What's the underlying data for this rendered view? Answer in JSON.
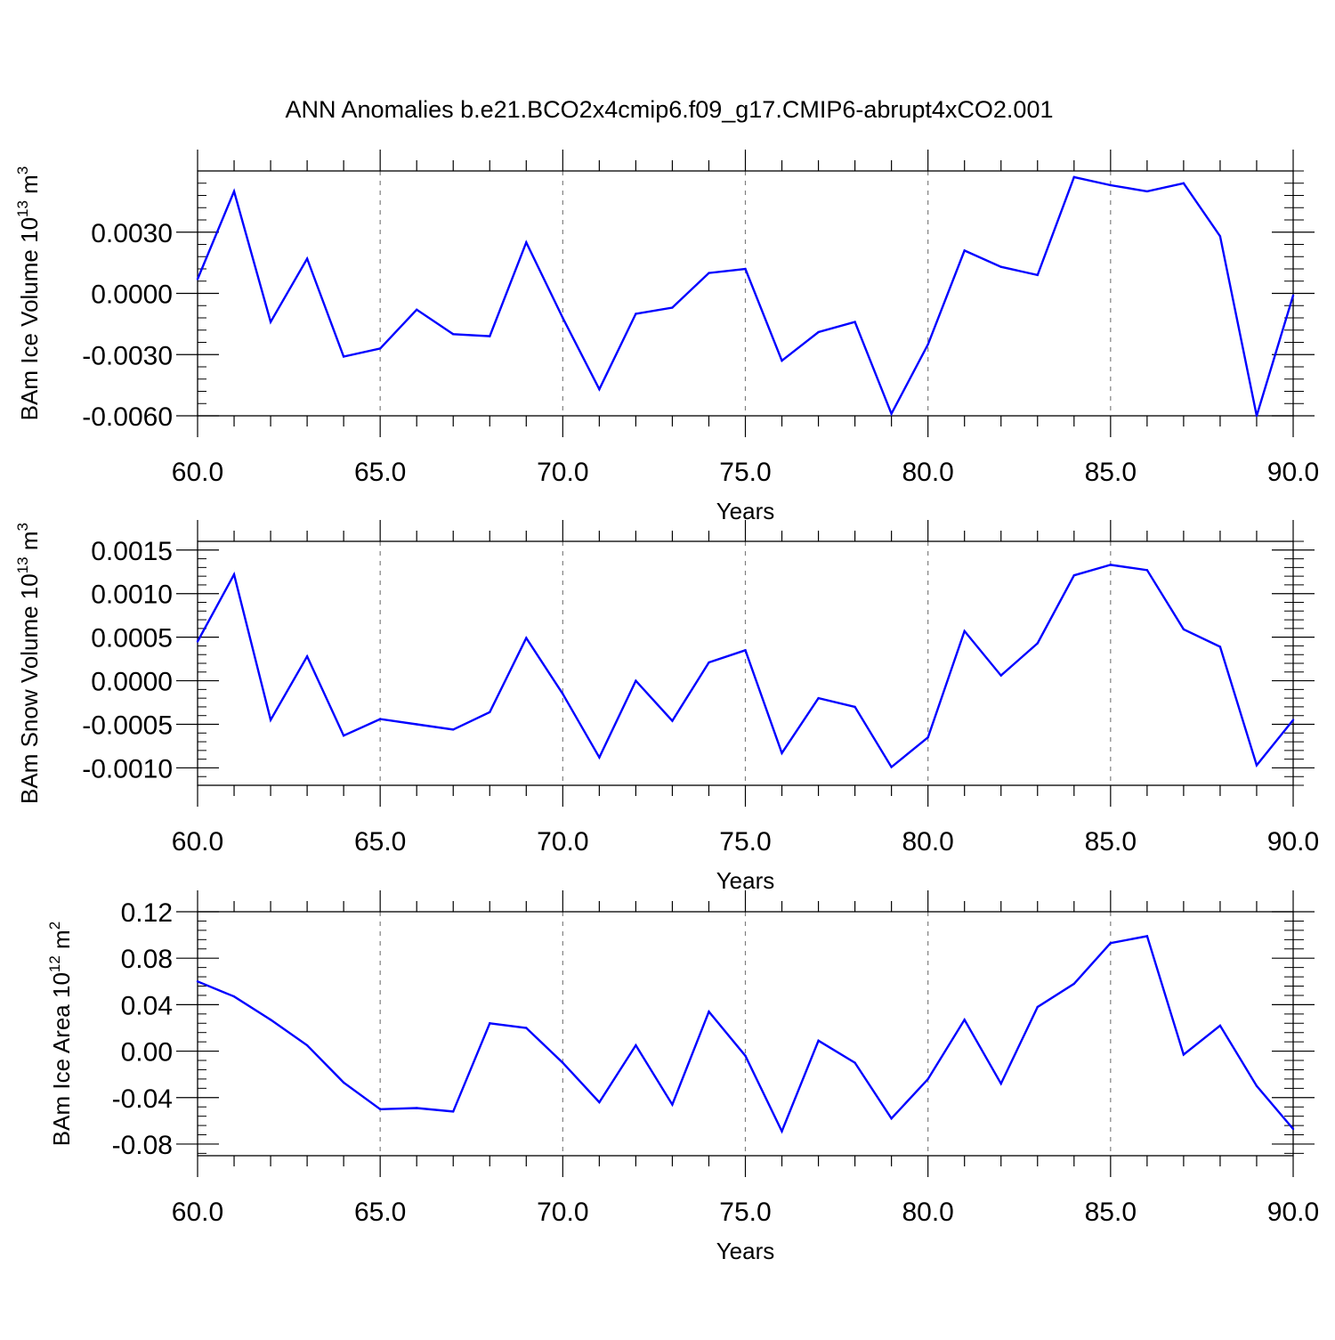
{
  "title": "ANN Anomalies b.e21.BCO2x4cmip6.f09_g17.CMIP6-abrupt4xCO2.001",
  "colors": {
    "series": "#0000ff",
    "axis": "#000000",
    "grid": "#7f7f7f"
  },
  "chart_data": [
    {
      "type": "line",
      "ylabel": {
        "base": "BAm Ice Volume 10",
        "exp": "13",
        "unit": " m",
        "unit_exp": "3"
      },
      "xlabel": "Years",
      "xlim": [
        60,
        90
      ],
      "ylim": [
        -0.006,
        0.006
      ],
      "xticks": [
        60,
        65,
        70,
        75,
        80,
        85,
        90
      ],
      "xtick_labels": [
        "60.0",
        "65.0",
        "70.0",
        "75.0",
        "80.0",
        "85.0",
        "90.0"
      ],
      "yticks": [
        0.003,
        0.0,
        -0.003,
        -0.006
      ],
      "ytick_labels": [
        "0.0030",
        "0.0000",
        "-0.0030",
        "-0.0060"
      ],
      "grid": "x-dashed",
      "series": [
        {
          "x": [
            60,
            61,
            62,
            63,
            64,
            65,
            66,
            67,
            68,
            69,
            70,
            71,
            72,
            73,
            74,
            75,
            76,
            77,
            78,
            79,
            80,
            81,
            82,
            83,
            84,
            85,
            86,
            87,
            88,
            89,
            90
          ],
          "values": [
            0.0007,
            0.005,
            -0.0014,
            0.0017,
            -0.0031,
            -0.0027,
            -0.0008,
            -0.002,
            -0.0021,
            0.0025,
            -0.0012,
            -0.0047,
            -0.001,
            -0.0007,
            0.001,
            0.0012,
            -0.0033,
            -0.0019,
            -0.0014,
            -0.0059,
            -0.0025,
            0.0021,
            0.0013,
            0.0009,
            0.0057,
            0.0053,
            0.005,
            0.0054,
            0.0028,
            -0.006,
            -0.0001
          ]
        }
      ]
    },
    {
      "type": "line",
      "ylabel": {
        "base": "BAm Snow Volume 10",
        "exp": "13",
        "unit": " m",
        "unit_exp": "3"
      },
      "xlabel": "Years",
      "xlim": [
        60,
        90
      ],
      "ylim": [
        -0.0012,
        0.0016
      ],
      "xticks": [
        60,
        65,
        70,
        75,
        80,
        85,
        90
      ],
      "xtick_labels": [
        "60.0",
        "65.0",
        "70.0",
        "75.0",
        "80.0",
        "85.0",
        "90.0"
      ],
      "yticks": [
        0.0015,
        0.001,
        0.0005,
        0.0,
        -0.0005,
        -0.001
      ],
      "ytick_labels": [
        "0.0015",
        "0.0010",
        "0.0005",
        "0.0000",
        "-0.0005",
        "-0.0010"
      ],
      "grid": "x-dashed",
      "series": [
        {
          "x": [
            60,
            61,
            62,
            63,
            64,
            65,
            66,
            67,
            68,
            69,
            70,
            71,
            72,
            73,
            74,
            75,
            76,
            77,
            78,
            79,
            80,
            81,
            82,
            83,
            84,
            85,
            86,
            87,
            88,
            89,
            90
          ],
          "values": [
            0.00045,
            0.00122,
            -0.00045,
            0.00028,
            -0.00063,
            -0.00044,
            -0.0005,
            -0.00056,
            -0.00036,
            0.00049,
            -0.00015,
            -0.00088,
            0.0,
            -0.00046,
            0.00021,
            0.00035,
            -0.00083,
            -0.0002,
            -0.0003,
            -0.00099,
            -0.00065,
            0.00057,
            6e-05,
            0.00043,
            0.00121,
            0.00133,
            0.00127,
            0.00059,
            0.00039,
            -0.00097,
            -0.00045
          ]
        }
      ]
    },
    {
      "type": "line",
      "ylabel": {
        "base": "BAm Ice Area 10",
        "exp": "12",
        "unit": " m",
        "unit_exp": "2"
      },
      "xlabel": "Years",
      "xlim": [
        60,
        90
      ],
      "ylim": [
        -0.09,
        0.12
      ],
      "xticks": [
        60,
        65,
        70,
        75,
        80,
        85,
        90
      ],
      "xtick_labels": [
        "60.0",
        "65.0",
        "70.0",
        "75.0",
        "80.0",
        "85.0",
        "90.0"
      ],
      "yticks": [
        0.12,
        0.08,
        0.04,
        0.0,
        -0.04,
        -0.08
      ],
      "ytick_labels": [
        "0.12",
        "0.08",
        "0.04",
        "0.00",
        "-0.04",
        "-0.08"
      ],
      "grid": "x-dashed",
      "series": [
        {
          "x": [
            60,
            61,
            62,
            63,
            64,
            65,
            66,
            67,
            68,
            69,
            70,
            71,
            72,
            73,
            74,
            75,
            76,
            77,
            78,
            79,
            80,
            81,
            82,
            83,
            84,
            85,
            86,
            87,
            88,
            89,
            90
          ],
          "values": [
            0.06,
            0.047,
            0.027,
            0.005,
            -0.027,
            -0.05,
            -0.049,
            -0.052,
            0.024,
            0.02,
            -0.01,
            -0.044,
            0.005,
            -0.046,
            0.034,
            -0.004,
            -0.069,
            0.009,
            -0.01,
            -0.058,
            -0.024,
            0.027,
            -0.028,
            0.038,
            0.058,
            0.093,
            0.099,
            -0.003,
            0.022,
            -0.03,
            -0.067
          ]
        }
      ]
    }
  ]
}
